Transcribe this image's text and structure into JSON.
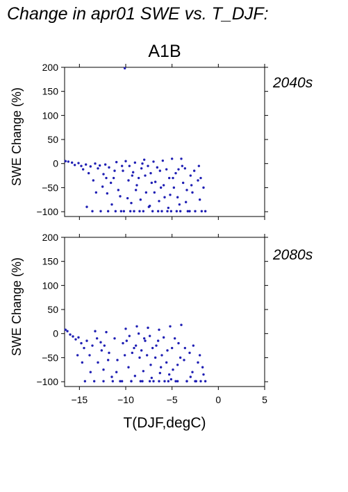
{
  "chart_data": {
    "type": "scatter",
    "title": "Change in apr01 SWE vs. T_DJF:",
    "scenario": "A1B",
    "xlabel": "T(DJF,degC)",
    "ylabel": "SWE Change (%)",
    "xlim": [
      -16.6,
      5
    ],
    "ylim": [
      -110,
      200
    ],
    "xticks": [
      -15,
      -10,
      -5,
      0,
      5
    ],
    "xtick_labels": [
      "−15",
      "−10",
      "−5",
      "0",
      "5"
    ],
    "yticks": [
      200,
      150,
      100,
      50,
      0,
      -50,
      -100
    ],
    "ytick_labels": [
      "200",
      "150",
      "100",
      "50",
      "0",
      "−50",
      "−100"
    ],
    "grid": false,
    "point_color": "#1f1fb4",
    "panels": [
      {
        "name": "2040s",
        "points": [
          [
            -16.5,
            5
          ],
          [
            -16.2,
            4
          ],
          [
            -15.8,
            2
          ],
          [
            -15.5,
            -3
          ],
          [
            -15.1,
            1
          ],
          [
            -14.8,
            -5
          ],
          [
            -14.6,
            -12
          ],
          [
            -14.3,
            -2
          ],
          [
            -14.0,
            -20
          ],
          [
            -13.8,
            -6
          ],
          [
            -13.5,
            -35
          ],
          [
            -13.3,
            0
          ],
          [
            -13.0,
            -10
          ],
          [
            -12.8,
            -4
          ],
          [
            -12.5,
            -48
          ],
          [
            -12.2,
            -2
          ],
          [
            -12.0,
            -62
          ],
          [
            -11.8,
            -8
          ],
          [
            -11.5,
            -85
          ],
          [
            -11.3,
            -30
          ],
          [
            -11.0,
            3
          ],
          [
            -10.8,
            -55
          ],
          [
            -10.5,
            -99
          ],
          [
            -10.3,
            -15
          ],
          [
            -10.0,
            5
          ],
          [
            -9.8,
            -72
          ],
          [
            -9.5,
            -99
          ],
          [
            -9.3,
            -25
          ],
          [
            -9.0,
            2
          ],
          [
            -8.8,
            -45
          ],
          [
            -8.5,
            -99
          ],
          [
            -8.3,
            -10
          ],
          [
            -8.0,
            8
          ],
          [
            -7.8,
            -60
          ],
          [
            -7.5,
            -90
          ],
          [
            -7.3,
            -20
          ],
          [
            -7.0,
            4
          ],
          [
            -6.8,
            -38
          ],
          [
            -6.5,
            -99
          ],
          [
            -6.3,
            -15
          ],
          [
            -6.0,
            6
          ],
          [
            -5.8,
            -70
          ],
          [
            -5.5,
            -99
          ],
          [
            -5.3,
            -30
          ],
          [
            -5.0,
            10
          ],
          [
            -4.8,
            -50
          ],
          [
            -4.5,
            -99
          ],
          [
            -4.3,
            -12
          ],
          [
            -4.0,
            10
          ],
          [
            -3.8,
            -40
          ],
          [
            -3.5,
            -80
          ],
          [
            -3.3,
            -99
          ],
          [
            -3.0,
            -25
          ],
          [
            -2.8,
            -60
          ],
          [
            -2.5,
            -99
          ],
          [
            -2.2,
            -35
          ],
          [
            -2.0,
            -75
          ],
          [
            -1.8,
            -99
          ],
          [
            -1.6,
            -50
          ],
          [
            -1.4,
            -99
          ],
          [
            -13.6,
            -99
          ],
          [
            -12.7,
            -99
          ],
          [
            -11.9,
            -99
          ],
          [
            -11.1,
            -99
          ],
          [
            -10.2,
            -99
          ],
          [
            -9.1,
            -99
          ],
          [
            -8.1,
            -99
          ],
          [
            -7.1,
            -99
          ],
          [
            -6.1,
            -99
          ],
          [
            -5.1,
            -99
          ],
          [
            -4.1,
            -99
          ],
          [
            -3.1,
            -99
          ],
          [
            -10.1,
            198
          ],
          [
            -9.6,
            -5
          ],
          [
            -9.2,
            -18
          ],
          [
            -8.6,
            -30
          ],
          [
            -8.2,
            0
          ],
          [
            -7.6,
            -5
          ],
          [
            -7.2,
            -40
          ],
          [
            -6.6,
            -8
          ],
          [
            -6.2,
            -50
          ],
          [
            -5.6,
            -12
          ],
          [
            -5.2,
            -65
          ],
          [
            -4.6,
            -20
          ],
          [
            -4.2,
            -85
          ],
          [
            -3.6,
            -10
          ],
          [
            -12.4,
            -22
          ],
          [
            -11.6,
            -40
          ],
          [
            -10.6,
            -68
          ],
          [
            -9.4,
            -82
          ],
          [
            -8.4,
            -75
          ],
          [
            -7.4,
            -88
          ],
          [
            -6.4,
            -78
          ],
          [
            -5.4,
            -92
          ],
          [
            -4.4,
            -70
          ],
          [
            -3.4,
            -55
          ],
          [
            -14.2,
            -90
          ],
          [
            -13.2,
            -60
          ],
          [
            -12.1,
            -30
          ],
          [
            -11.2,
            -15
          ],
          [
            -10.4,
            -5
          ],
          [
            -9.7,
            -35
          ],
          [
            -8.9,
            -55
          ],
          [
            -7.9,
            -25
          ],
          [
            -6.9,
            -60
          ],
          [
            -5.9,
            -45
          ],
          [
            -4.9,
            -30
          ],
          [
            -3.9,
            -5
          ],
          [
            -2.9,
            -45
          ],
          [
            -2.6,
            -15
          ],
          [
            -2.1,
            -5
          ],
          [
            -1.9,
            -30
          ]
        ]
      },
      {
        "name": "2080s",
        "points": [
          [
            -16.5,
            8
          ],
          [
            -16.3,
            5
          ],
          [
            -16.0,
            -2
          ],
          [
            -15.7,
            -6
          ],
          [
            -15.4,
            -12
          ],
          [
            -15.1,
            -8
          ],
          [
            -14.8,
            -20
          ],
          [
            -14.5,
            -30
          ],
          [
            -14.2,
            -15
          ],
          [
            -13.9,
            -45
          ],
          [
            -13.6,
            -25
          ],
          [
            -13.3,
            5
          ],
          [
            -13.0,
            -60
          ],
          [
            -12.7,
            -18
          ],
          [
            -12.4,
            -75
          ],
          [
            -12.1,
            3
          ],
          [
            -11.8,
            -40
          ],
          [
            -11.5,
            -90
          ],
          [
            -11.2,
            -10
          ],
          [
            -10.9,
            -55
          ],
          [
            -10.6,
            -99
          ],
          [
            -10.3,
            -20
          ],
          [
            -10.0,
            10
          ],
          [
            -9.7,
            -70
          ],
          [
            -9.4,
            -99
          ],
          [
            -9.1,
            -30
          ],
          [
            -8.8,
            15
          ],
          [
            -8.5,
            -50
          ],
          [
            -8.2,
            -99
          ],
          [
            -7.9,
            -15
          ],
          [
            -7.6,
            12
          ],
          [
            -7.3,
            -65
          ],
          [
            -7.0,
            -99
          ],
          [
            -6.7,
            -25
          ],
          [
            -6.4,
            8
          ],
          [
            -6.1,
            -45
          ],
          [
            -5.8,
            -99
          ],
          [
            -5.5,
            -35
          ],
          [
            -5.2,
            15
          ],
          [
            -4.9,
            -75
          ],
          [
            -4.6,
            -99
          ],
          [
            -4.3,
            -20
          ],
          [
            -4.0,
            18
          ],
          [
            -3.7,
            -55
          ],
          [
            -3.4,
            -99
          ],
          [
            -3.1,
            -40
          ],
          [
            -2.8,
            -80
          ],
          [
            -2.5,
            -99
          ],
          [
            -2.2,
            -60
          ],
          [
            -1.9,
            -99
          ],
          [
            -1.6,
            -85
          ],
          [
            -1.4,
            -99
          ],
          [
            -14.4,
            -99
          ],
          [
            -13.4,
            -99
          ],
          [
            -12.4,
            -99
          ],
          [
            -11.4,
            -99
          ],
          [
            -10.4,
            -99
          ],
          [
            -9.4,
            -99
          ],
          [
            -8.4,
            -99
          ],
          [
            -7.4,
            -99
          ],
          [
            -6.4,
            -99
          ],
          [
            -5.4,
            -99
          ],
          [
            -4.4,
            -99
          ],
          [
            -3.4,
            -99
          ],
          [
            -2.4,
            -99
          ],
          [
            -9.9,
            -15
          ],
          [
            -9.6,
            -5
          ],
          [
            -9.3,
            -40
          ],
          [
            -8.9,
            -25
          ],
          [
            -8.6,
            0
          ],
          [
            -8.3,
            -35
          ],
          [
            -8.0,
            -10
          ],
          [
            -7.7,
            -45
          ],
          [
            -7.4,
            -5
          ],
          [
            -7.1,
            -30
          ],
          [
            -6.8,
            -50
          ],
          [
            -6.5,
            -15
          ],
          [
            -6.2,
            -70
          ],
          [
            -5.9,
            -8
          ],
          [
            -5.6,
            -60
          ],
          [
            -5.3,
            -85
          ],
          [
            -5.0,
            -30
          ],
          [
            -4.7,
            -10
          ],
          [
            -4.4,
            -65
          ],
          [
            -12.6,
            -35
          ],
          [
            -11.9,
            -55
          ],
          [
            -11.0,
            -80
          ],
          [
            -10.1,
            -45
          ],
          [
            -9.0,
            -88
          ],
          [
            -8.1,
            -78
          ],
          [
            -7.2,
            -92
          ],
          [
            -6.3,
            -82
          ],
          [
            -5.1,
            -95
          ],
          [
            -4.1,
            -50
          ],
          [
            -3.6,
            -30
          ],
          [
            -3.0,
            -90
          ],
          [
            -2.7,
            -25
          ],
          [
            -2.0,
            -45
          ],
          [
            -1.7,
            -70
          ],
          [
            -15.2,
            -45
          ],
          [
            -14.7,
            -60
          ],
          [
            -13.8,
            -80
          ],
          [
            -13.1,
            -10
          ],
          [
            -12.3,
            -25
          ]
        ]
      }
    ]
  }
}
